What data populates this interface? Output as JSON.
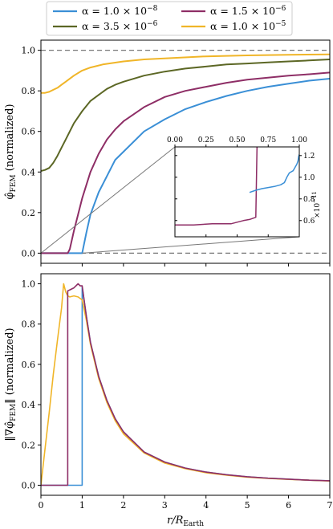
{
  "colors": {
    "blue": "#3a8fd6",
    "purple": "#8e2e66",
    "olive": "#5c6725",
    "gold": "#f0b528",
    "gray": "#777777",
    "frame": "#000000"
  },
  "chart_data": [
    {
      "id": "top-panel",
      "type": "line",
      "xlim": [
        0,
        7
      ],
      "ylim": [
        -0.05,
        1.05
      ],
      "yticks": [
        "0.0",
        "0.2",
        "0.4",
        "0.6",
        "0.8",
        "1.0"
      ],
      "ylabel": {
        "base": "φ̂",
        "sub": "FEM",
        "rest": " (normalized)"
      },
      "reference_lines": [
        0.0,
        1.0
      ],
      "legend": {
        "placement": "top-center, above plot",
        "entries": [
          {
            "text": "α = 1.0 × 10",
            "exp": "−8",
            "color_key": "blue"
          },
          {
            "text": "α = 1.5 × 10",
            "exp": "−6",
            "color_key": "purple"
          },
          {
            "text": "α = 3.5 × 10",
            "exp": "−6",
            "color_key": "olive"
          },
          {
            "text": "α = 1.0 × 10",
            "exp": "−5",
            "color_key": "gold"
          }
        ]
      },
      "series": [
        {
          "color_key": "blue",
          "x": [
            0,
            0.99,
            1.0,
            1.1,
            1.2,
            1.4,
            1.6,
            1.8,
            2.0,
            2.5,
            3.0,
            3.5,
            4.0,
            4.5,
            5.0,
            5.5,
            6.0,
            6.5,
            7.0
          ],
          "y": [
            0,
            0,
            0.0,
            0.1,
            0.19,
            0.3,
            0.38,
            0.46,
            0.5,
            0.6,
            0.66,
            0.71,
            0.745,
            0.775,
            0.8,
            0.82,
            0.835,
            0.85,
            0.86
          ]
        },
        {
          "color_key": "purple",
          "x": [
            0,
            0.65,
            0.7,
            0.8,
            0.9,
            1.0,
            1.2,
            1.4,
            1.6,
            1.8,
            2.0,
            2.5,
            3.0,
            3.5,
            4.0,
            4.5,
            5.0,
            5.5,
            6.0,
            6.5,
            7.0
          ],
          "y": [
            0,
            0,
            0.02,
            0.11,
            0.19,
            0.27,
            0.4,
            0.49,
            0.56,
            0.61,
            0.65,
            0.72,
            0.77,
            0.8,
            0.82,
            0.84,
            0.855,
            0.865,
            0.875,
            0.882,
            0.89
          ]
        },
        {
          "color_key": "olive",
          "x": [
            0,
            0.1,
            0.2,
            0.3,
            0.4,
            0.5,
            0.6,
            0.8,
            1.0,
            1.2,
            1.4,
            1.6,
            1.8,
            2.0,
            2.5,
            3.0,
            3.5,
            4.0,
            4.5,
            5.0,
            5.5,
            6.0,
            6.5,
            7.0
          ],
          "y": [
            0.405,
            0.41,
            0.42,
            0.445,
            0.48,
            0.52,
            0.56,
            0.64,
            0.7,
            0.75,
            0.78,
            0.81,
            0.83,
            0.845,
            0.875,
            0.895,
            0.91,
            0.92,
            0.93,
            0.935,
            0.94,
            0.945,
            0.95,
            0.955
          ]
        },
        {
          "color_key": "gold",
          "x": [
            0,
            0.1,
            0.2,
            0.3,
            0.4,
            0.5,
            0.6,
            0.8,
            1.0,
            1.2,
            1.5,
            2.0,
            2.5,
            3.0,
            4.0,
            5.0,
            6.0,
            7.0
          ],
          "y": [
            0.79,
            0.79,
            0.795,
            0.805,
            0.815,
            0.83,
            0.845,
            0.875,
            0.9,
            0.915,
            0.93,
            0.945,
            0.955,
            0.96,
            0.97,
            0.975,
            0.978,
            0.98
          ]
        }
      ],
      "zoom_indicator": {
        "x_range": [
          0,
          1
        ],
        "y_range": [
          0,
          0.008
        ]
      }
    },
    {
      "id": "inset",
      "type": "line",
      "xlim": [
        0,
        1
      ],
      "ylim": [
        0.45,
        1.28
      ],
      "xticks": [
        "0.00",
        "0.25",
        "0.50",
        "0.75",
        "1.00"
      ],
      "yticks": [
        "0.6",
        "0.8",
        "1.0",
        "1.2"
      ],
      "y_multiplier": {
        "base": "×10",
        "exp": "−11"
      },
      "series": [
        {
          "color_key": "purple",
          "x": [
            0,
            0.15,
            0.3,
            0.45,
            0.5,
            0.55,
            0.6,
            0.65,
            0.66
          ],
          "y": [
            0.56,
            0.56,
            0.57,
            0.57,
            0.585,
            0.6,
            0.61,
            0.63,
            1.28
          ]
        },
        {
          "color_key": "blue",
          "x": [
            0.6,
            0.65,
            0.7,
            0.75,
            0.8,
            0.85,
            0.88,
            0.9,
            0.92,
            0.95,
            0.97,
            0.98,
            0.99,
            0.995,
            1.0
          ],
          "y": [
            0.86,
            0.88,
            0.895,
            0.905,
            0.915,
            0.93,
            0.95,
            1.0,
            1.04,
            1.06,
            1.1,
            1.12,
            1.15,
            1.19,
            1.21
          ]
        }
      ]
    },
    {
      "id": "bottom-panel",
      "type": "line",
      "xlim": [
        0,
        7
      ],
      "ylim": [
        -0.05,
        1.05
      ],
      "xticks": [
        "0",
        "1",
        "2",
        "3",
        "4",
        "5",
        "6",
        "7"
      ],
      "yticks": [
        "0.0",
        "0.2",
        "0.4",
        "0.6",
        "0.8",
        "1.0"
      ],
      "xlabel": {
        "base": "r/R",
        "sub": "Earth"
      },
      "ylabel": {
        "base": "‖∇φ̂",
        "sub": "FEM",
        "rest": "‖ (normalized)"
      },
      "series": [
        {
          "color_key": "blue",
          "x": [
            0,
            0.999,
            1.0,
            1.1,
            1.2,
            1.4,
            1.6,
            1.8,
            2.0,
            2.5,
            3.0,
            3.5,
            4.0,
            4.5,
            5.0,
            5.5,
            6.0,
            6.5,
            7.0
          ],
          "y": [
            0,
            0,
            0.985,
            0.84,
            0.71,
            0.54,
            0.42,
            0.33,
            0.265,
            0.165,
            0.115,
            0.085,
            0.065,
            0.052,
            0.042,
            0.035,
            0.03,
            0.025,
            0.022
          ]
        },
        {
          "color_key": "gold",
          "x": [
            0,
            0.1,
            0.2,
            0.3,
            0.4,
            0.5,
            0.55,
            0.6,
            0.65,
            0.7,
            0.8,
            0.9,
            1.0,
            1.1,
            1.2,
            1.4,
            1.6,
            1.8,
            2.0,
            2.5,
            3.0,
            3.5,
            4.0,
            4.5,
            5.0,
            5.5,
            6.0,
            6.5,
            7.0
          ],
          "y": [
            0,
            0.18,
            0.36,
            0.55,
            0.72,
            0.88,
            1.0,
            0.96,
            0.94,
            0.935,
            0.94,
            0.935,
            0.92,
            0.82,
            0.7,
            0.53,
            0.41,
            0.32,
            0.255,
            0.16,
            0.11,
            0.082,
            0.062,
            0.05,
            0.04,
            0.034,
            0.029,
            0.025,
            0.021
          ]
        },
        {
          "color_key": "purple",
          "x": [
            0,
            0.649,
            0.65,
            0.7,
            0.8,
            0.9,
            0.95,
            1.0,
            1.1,
            1.2,
            1.4,
            1.6,
            1.8,
            2.0,
            2.5,
            3.0,
            3.5,
            4.0,
            4.5,
            5.0,
            5.5,
            6.0,
            6.5,
            7.0
          ],
          "y": [
            0,
            0,
            0.965,
            0.97,
            0.98,
            1.0,
            0.99,
            0.99,
            0.84,
            0.71,
            0.54,
            0.42,
            0.33,
            0.265,
            0.165,
            0.115,
            0.085,
            0.065,
            0.052,
            0.042,
            0.035,
            0.03,
            0.025,
            0.022
          ]
        }
      ]
    }
  ]
}
